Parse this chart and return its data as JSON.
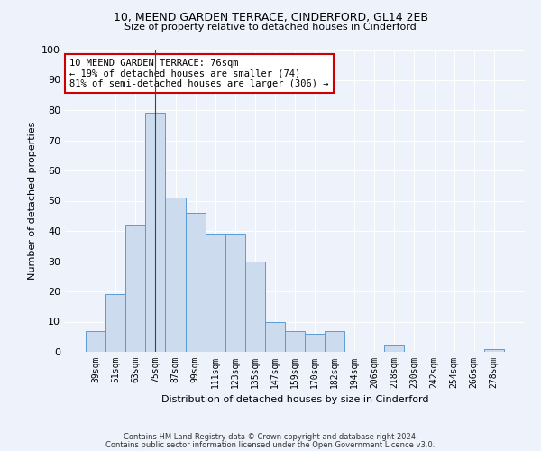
{
  "title1": "10, MEEND GARDEN TERRACE, CINDERFORD, GL14 2EB",
  "title2": "Size of property relative to detached houses in Cinderford",
  "xlabel": "Distribution of detached houses by size in Cinderford",
  "ylabel": "Number of detached properties",
  "categories": [
    "39sqm",
    "51sqm",
    "63sqm",
    "75sqm",
    "87sqm",
    "99sqm",
    "111sqm",
    "123sqm",
    "135sqm",
    "147sqm",
    "159sqm",
    "170sqm",
    "182sqm",
    "194sqm",
    "206sqm",
    "218sqm",
    "230sqm",
    "242sqm",
    "254sqm",
    "266sqm",
    "278sqm"
  ],
  "values": [
    7,
    19,
    42,
    79,
    51,
    46,
    39,
    39,
    30,
    10,
    7,
    6,
    7,
    0,
    0,
    2,
    0,
    0,
    0,
    0,
    1
  ],
  "bar_color": "#ccdcee",
  "bar_edge_color": "#5b9bd5",
  "vline_x": 3.5,
  "annotation_text": "10 MEEND GARDEN TERRACE: 76sqm\n← 19% of detached houses are smaller (74)\n81% of semi-detached houses are larger (306) →",
  "annotation_box_color": "#ffffff",
  "annotation_box_edge": "#cc0000",
  "ylim": [
    0,
    100
  ],
  "yticks": [
    0,
    10,
    20,
    30,
    40,
    50,
    60,
    70,
    80,
    90,
    100
  ],
  "background_color": "#eef2fb",
  "grid_color": "#ffffff",
  "footer1": "Contains HM Land Registry data © Crown copyright and database right 2024.",
  "footer2": "Contains public sector information licensed under the Open Government Licence v3.0."
}
